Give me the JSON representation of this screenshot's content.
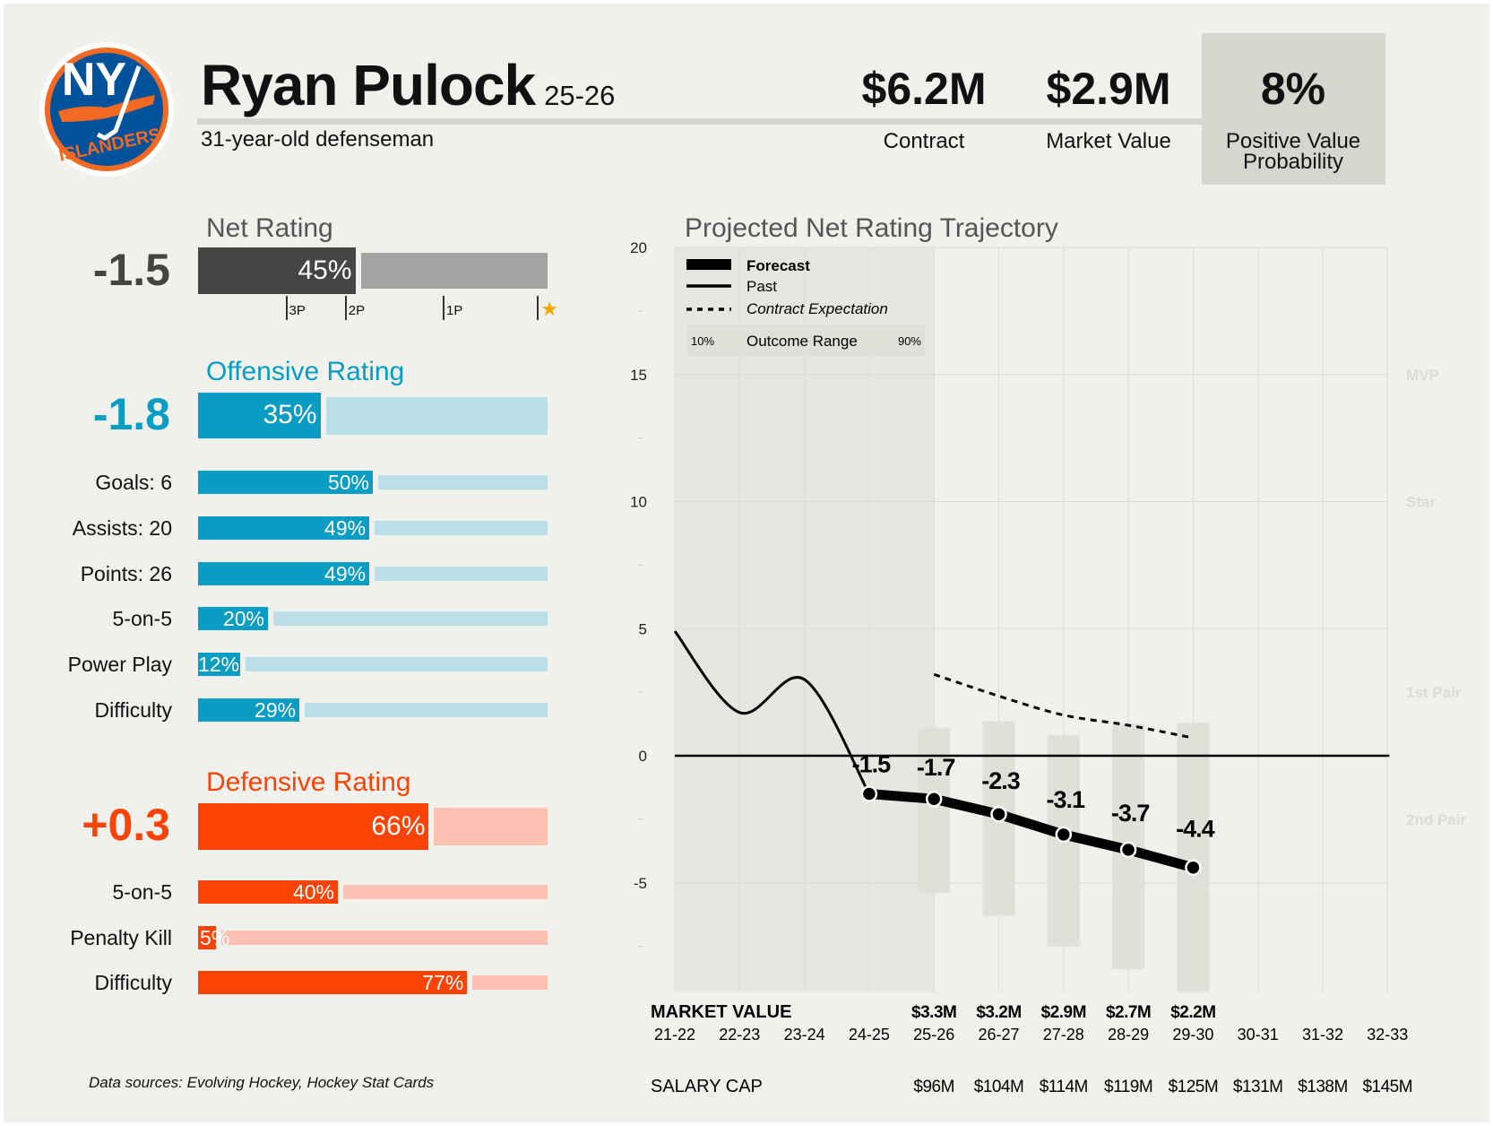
{
  "header": {
    "team_logo": "New York Islanders logo",
    "player_name": "Ryan Pulock",
    "season": "25-26",
    "subtitle": "31-year-old defenseman",
    "contract_value": "$6.2M",
    "contract_label": "Contract",
    "market_value": "$2.9M",
    "market_value_label": "Market Value",
    "probability_value": "8%",
    "probability_label_1": "Positive Value",
    "probability_label_2": "Probability"
  },
  "net_rating": {
    "title": "Net Rating",
    "value": "-1.5",
    "percentile": 45,
    "percentile_label": "45%",
    "ticks": [
      {
        "label": "3P",
        "pos": 0.25
      },
      {
        "label": "2P",
        "pos": 0.42
      },
      {
        "label": "1P",
        "pos": 0.7
      },
      {
        "label": "★",
        "pos": 0.97
      }
    ]
  },
  "offense": {
    "title": "Offensive Rating",
    "value": "-1.8",
    "percentile": 35,
    "percentile_label": "35%",
    "rows": [
      {
        "label": "Goals: 6",
        "pct": 50,
        "pct_label": "50%"
      },
      {
        "label": "Assists: 20",
        "pct": 49,
        "pct_label": "49%"
      },
      {
        "label": "Points: 26",
        "pct": 49,
        "pct_label": "49%"
      },
      {
        "label": "5-on-5",
        "pct": 20,
        "pct_label": "20%"
      },
      {
        "label": "Power Play",
        "pct": 12,
        "pct_label": "12%"
      },
      {
        "label": "Difficulty",
        "pct": 29,
        "pct_label": "29%"
      }
    ]
  },
  "defense": {
    "title": "Defensive Rating",
    "value": "+0.3",
    "percentile": 66,
    "percentile_label": "66%",
    "rows": [
      {
        "label": "5-on-5",
        "pct": 40,
        "pct_label": "40%"
      },
      {
        "label": "Penalty Kill",
        "pct": 5,
        "pct_label": "5%"
      },
      {
        "label": "Difficulty",
        "pct": 77,
        "pct_label": "77%"
      }
    ]
  },
  "colors": {
    "net_dark": "#464544",
    "net_light": "#a4a3a1",
    "off_dark": "#0a9dc4",
    "off_light": "#badfe9",
    "def_dark": "#fc4306",
    "def_light": "#fec0b2",
    "star": "#f5a800"
  },
  "footer": {
    "sources": "Data sources: Evolving Hockey, Hockey Stat Cards"
  },
  "chart_data": {
    "type": "line",
    "title": "Projected Net Rating Trajectory",
    "categories": [
      "21-22",
      "22-23",
      "23-24",
      "24-25",
      "25-26",
      "26-27",
      "27-28",
      "28-29",
      "29-30",
      "30-31",
      "31-32",
      "32-33"
    ],
    "ylim": [
      -9.3,
      20
    ],
    "yticks": [
      -5,
      0,
      5,
      10,
      15,
      20
    ],
    "grid": true,
    "legend_placement": "top-left",
    "legend": {
      "forecast": "Forecast",
      "past": "Past",
      "contract": "Contract Expectation",
      "range_low": "10%",
      "range_label": "Outcome Range",
      "range_high": "90%"
    },
    "tiers": [
      {
        "label": "MVP",
        "y": 15
      },
      {
        "label": "Star",
        "y": 10
      },
      {
        "label": "1st Pair",
        "y": 2.5
      },
      {
        "label": "2nd Pair",
        "y": -2.5
      }
    ],
    "series": [
      {
        "name": "Past",
        "x": [
          "21-22",
          "22-23",
          "23-24",
          "24-25"
        ],
        "values": [
          4.9,
          1.7,
          3.0,
          -1.5
        ]
      },
      {
        "name": "Forecast",
        "x": [
          "24-25",
          "25-26",
          "26-27",
          "27-28",
          "28-29",
          "29-30"
        ],
        "values": [
          -1.5,
          -1.7,
          -2.3,
          -3.1,
          -3.7,
          -4.4
        ],
        "labels": [
          "-1.5",
          "-1.7",
          "-2.3",
          "-3.1",
          "-3.7",
          "-4.4"
        ]
      },
      {
        "name": "Contract Expectation",
        "x": [
          "25-26",
          "26-27",
          "27-28",
          "28-29",
          "29-30"
        ],
        "values": [
          3.2,
          2.35,
          1.6,
          1.2,
          0.7
        ]
      },
      {
        "name": "Outcome Range",
        "x": [
          "25-26",
          "26-27",
          "27-28",
          "28-29",
          "29-30"
        ],
        "low": [
          -5.4,
          -6.3,
          -7.5,
          -8.4,
          -9.3
        ],
        "high": [
          1.1,
          1.35,
          0.8,
          1.25,
          1.3
        ]
      }
    ],
    "market_value_label": "MARKET VALUE",
    "market_values": [
      null,
      null,
      null,
      null,
      "$3.3M",
      "$3.2M",
      "$2.9M",
      "$2.7M",
      "$2.2M",
      null,
      null,
      null
    ],
    "salary_cap_label": "SALARY CAP",
    "salary_caps": [
      null,
      null,
      null,
      null,
      "$96M",
      "$104M",
      "$114M",
      "$119M",
      "$125M",
      "$131M",
      "$138M",
      "$145M"
    ]
  }
}
